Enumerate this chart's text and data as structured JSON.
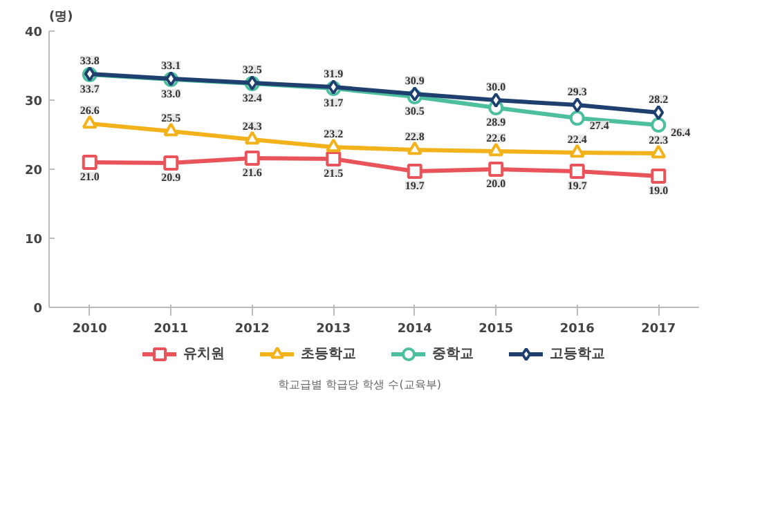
{
  "chart_data": {
    "type": "line",
    "ylabel": "(명)",
    "categories": [
      "2010",
      "2011",
      "2012",
      "2013",
      "2014",
      "2015",
      "2016",
      "2017"
    ],
    "series": [
      {
        "name": "유치원",
        "color": "#e8545a",
        "marker": "square",
        "values": [
          21.0,
          20.9,
          21.6,
          21.5,
          19.7,
          20.0,
          19.7,
          19.0
        ],
        "value_labels": [
          "21.0",
          "20.9",
          "21.6",
          "21.5",
          "19.7",
          "20.0",
          "19.7",
          "19.0"
        ]
      },
      {
        "name": "초등학교",
        "color": "#f2b21c",
        "marker": "triangle",
        "values": [
          26.6,
          25.5,
          24.3,
          23.2,
          22.8,
          22.6,
          22.4,
          22.3
        ],
        "value_labels": [
          "26.6",
          "25.5",
          "24.3",
          "23.2",
          "22.8",
          "22.6",
          "22.4",
          "22.3"
        ]
      },
      {
        "name": "중학교",
        "color": "#4dbf9f",
        "marker": "circle",
        "values": [
          33.7,
          33.0,
          32.4,
          31.7,
          30.5,
          28.9,
          27.4,
          26.4
        ],
        "value_labels": [
          "33.7",
          "33.0",
          "32.4",
          "31.7",
          "30.5",
          "28.9",
          "27.4",
          "26.4"
        ]
      },
      {
        "name": "고등학교",
        "color": "#1f3f6e",
        "marker": "diamond",
        "values": [
          33.8,
          33.1,
          32.5,
          31.9,
          30.9,
          30.0,
          29.3,
          28.2
        ],
        "value_labels": [
          "33.8",
          "33.1",
          "32.5",
          "31.9",
          "30.9",
          "30.0",
          "29.3",
          "28.2"
        ]
      }
    ],
    "ylim": [
      0,
      40
    ],
    "yticks": [
      0,
      10,
      20,
      30,
      40
    ],
    "legend": "bottom",
    "line_style": "solid",
    "annotations": [
      "학교급별 학급당 학생 수(교육부)"
    ]
  }
}
